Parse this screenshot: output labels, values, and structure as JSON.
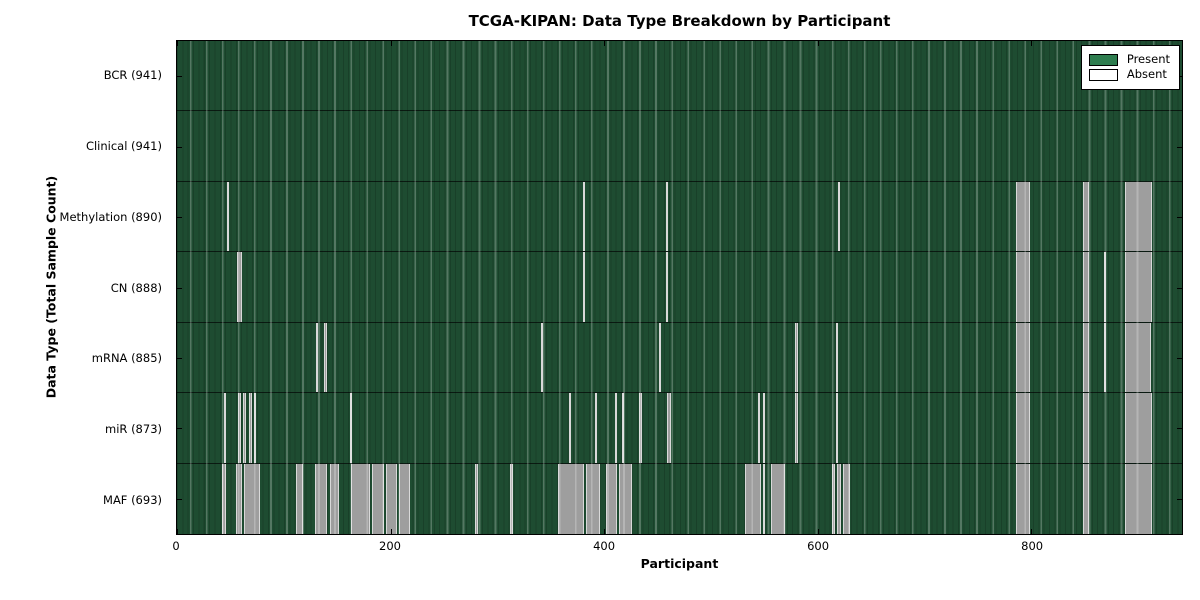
{
  "title": "TCGA-KIPAN: Data Type Breakdown by Participant",
  "xlabel": "Participant",
  "ylabel": "Data Type (Total Sample Count)",
  "legend": {
    "present_label": "Present",
    "absent_label": "Absent"
  },
  "colors": {
    "present_swatch": "#2E7D4F",
    "present_fill": "#1E4C31",
    "absent_fill": "#9E9E9E",
    "absent_edge": "#D9D9D9",
    "frame": "#000000"
  },
  "chart_data": {
    "type": "heatmap",
    "title": "TCGA-KIPAN: Data Type Breakdown by Participant",
    "xlabel": "Participant",
    "ylabel": "Data Type (Total Sample Count)",
    "x_range": [
      0,
      941
    ],
    "x_ticks": [
      0,
      200,
      400,
      600,
      800
    ],
    "legend_position": "upper right",
    "legend_entries": [
      "Present",
      "Absent"
    ],
    "rows": [
      {
        "name": "BCR",
        "label": "BCR (941)",
        "present_count": 941,
        "absent_ranges": []
      },
      {
        "name": "Clinical",
        "label": "Clinical (941)",
        "present_count": 941,
        "absent_ranges": []
      },
      {
        "name": "Methylation",
        "label": "Methylation (890)",
        "present_count": 890,
        "absent_ranges": [
          [
            47,
            49
          ],
          [
            380,
            382
          ],
          [
            458,
            460
          ],
          [
            619,
            621
          ],
          [
            786,
            799
          ],
          [
            848,
            854
          ],
          [
            888,
            913
          ]
        ]
      },
      {
        "name": "CN",
        "label": "CN (888)",
        "present_count": 888,
        "absent_ranges": [
          [
            56,
            61
          ],
          [
            380,
            382
          ],
          [
            458,
            460
          ],
          [
            786,
            799
          ],
          [
            848,
            854
          ],
          [
            868,
            869
          ],
          [
            888,
            913
          ]
        ]
      },
      {
        "name": "mRNA",
        "label": "mRNA (885)",
        "present_count": 885,
        "absent_ranges": [
          [
            130,
            132
          ],
          [
            138,
            140
          ],
          [
            341,
            343
          ],
          [
            451,
            453
          ],
          [
            579,
            581
          ],
          [
            617,
            619
          ],
          [
            786,
            799
          ],
          [
            848,
            854
          ],
          [
            868,
            869
          ],
          [
            888,
            912
          ]
        ]
      },
      {
        "name": "miR",
        "label": "miR (873)",
        "present_count": 873,
        "absent_ranges": [
          [
            44,
            45
          ],
          [
            57,
            60
          ],
          [
            62,
            65
          ],
          [
            67,
            70
          ],
          [
            72,
            74
          ],
          [
            162,
            164
          ],
          [
            367,
            369
          ],
          [
            391,
            393
          ],
          [
            410,
            412
          ],
          [
            417,
            419
          ],
          [
            433,
            435
          ],
          [
            459,
            463
          ],
          [
            544,
            546
          ],
          [
            549,
            551
          ],
          [
            579,
            581
          ],
          [
            617,
            619
          ],
          [
            786,
            799
          ],
          [
            848,
            854
          ],
          [
            888,
            913
          ]
        ]
      },
      {
        "name": "MAF",
        "label": "MAF (693)",
        "present_count": 693,
        "absent_ranges": [
          [
            42,
            46
          ],
          [
            55,
            61
          ],
          [
            63,
            78
          ],
          [
            111,
            118
          ],
          [
            129,
            140
          ],
          [
            143,
            152
          ],
          [
            163,
            181
          ],
          [
            183,
            194
          ],
          [
            196,
            206
          ],
          [
            208,
            218
          ],
          [
            279,
            282
          ],
          [
            312,
            315
          ],
          [
            357,
            381
          ],
          [
            383,
            396
          ],
          [
            402,
            412
          ],
          [
            414,
            426
          ],
          [
            532,
            547
          ],
          [
            549,
            551
          ],
          [
            556,
            569
          ],
          [
            613,
            616
          ],
          [
            618,
            622
          ],
          [
            624,
            630
          ],
          [
            786,
            799
          ],
          [
            848,
            854
          ],
          [
            888,
            913
          ]
        ]
      }
    ]
  }
}
